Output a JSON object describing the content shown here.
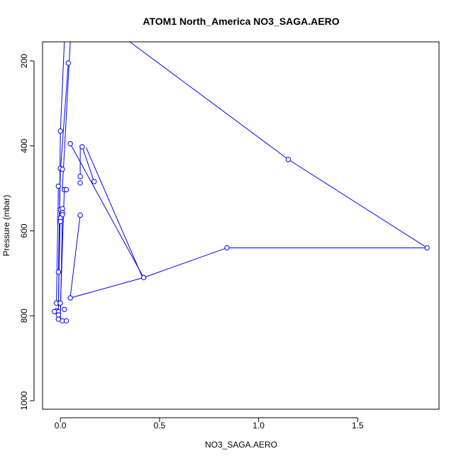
{
  "chart_data": {
    "type": "line",
    "title": "ATOM1 North_America NO3_SAGA.AERO",
    "xlabel": "NO3_SAGA.AERO",
    "ylabel": "Pressure (mbar)",
    "xlim": [
      -0.09,
      1.91
    ],
    "ylim": [
      1020,
      155
    ],
    "y_reversed": true,
    "grid": false,
    "x_ticks": [
      {
        "value": 0,
        "label": "0.0"
      },
      {
        "value": 0.5,
        "label": "0.5"
      },
      {
        "value": 1.0,
        "label": "1.0"
      },
      {
        "value": 1.5,
        "label": "1.5"
      }
    ],
    "y_ticks": [
      {
        "value": 200,
        "label": "200"
      },
      {
        "value": 400,
        "label": "400"
      },
      {
        "value": 600,
        "label": "600"
      },
      {
        "value": 800,
        "label": "800"
      },
      {
        "value": 1000,
        "label": "1000"
      }
    ],
    "series": [
      {
        "color": "#0000ff",
        "marker": "open-circle",
        "line_segments": [
          [
            [
              0.35,
              155
            ],
            [
              1.15,
              432
            ],
            [
              1.85,
              640
            ]
          ],
          [
            [
              1.85,
              640
            ],
            [
              0.84,
              640
            ],
            [
              0.42,
              710
            ],
            [
              0.05,
              758
            ]
          ],
          [
            [
              0.05,
              395
            ],
            [
              0.42,
              710
            ]
          ],
          [
            [
              0.11,
              402
            ],
            [
              0.17,
              484
            ]
          ],
          [
            [
              0.1,
              402
            ],
            [
              0.1,
              472
            ]
          ],
          [
            [
              0.13,
              404
            ],
            [
              0.41,
              705
            ]
          ],
          [
            [
              0.05,
              755
            ],
            [
              0.1,
              563
            ]
          ],
          [
            [
              0.04,
              205
            ],
            [
              0.0,
              460
            ]
          ],
          [
            [
              0.02,
              155
            ],
            [
              0.0,
              365
            ]
          ],
          [
            [
              0.05,
              155
            ],
            [
              0.01,
              500
            ]
          ],
          [
            [
              0.0,
              450
            ],
            [
              -0.01,
              700
            ]
          ],
          [
            [
              0.0,
              545
            ],
            [
              -0.01,
              770
            ]
          ],
          [
            [
              0.02,
              500
            ],
            [
              0.0,
              780
            ]
          ],
          [
            [
              0.0,
              370
            ],
            [
              -0.01,
              790
            ]
          ],
          [
            [
              0.01,
              560
            ],
            [
              0.0,
              810
            ]
          ],
          [
            [
              -0.01,
              495
            ],
            [
              -0.02,
              770
            ]
          ]
        ],
        "points": [
          [
            0.04,
            205
          ],
          [
            1.15,
            432
          ],
          [
            1.85,
            640
          ],
          [
            0.84,
            640
          ],
          [
            0.42,
            710
          ],
          [
            0.05,
            758
          ],
          [
            0.05,
            395
          ],
          [
            0.11,
            402
          ],
          [
            0.17,
            484
          ],
          [
            0.1,
            472
          ],
          [
            0.1,
            487
          ],
          [
            0.1,
            563
          ],
          [
            0.0,
            365
          ],
          [
            0.0,
            453
          ],
          [
            0.01,
            455
          ],
          [
            -0.01,
            495
          ],
          [
            0.02,
            503
          ],
          [
            0.03,
            503
          ],
          [
            0.0,
            550
          ],
          [
            0.01,
            548
          ],
          [
            0.01,
            557
          ],
          [
            0.01,
            562
          ],
          [
            0.0,
            570
          ],
          [
            0.0,
            578
          ],
          [
            -0.01,
            697
          ],
          [
            -0.01,
            770
          ],
          [
            -0.02,
            770
          ],
          [
            0.0,
            770
          ],
          [
            -0.02,
            788
          ],
          [
            -0.01,
            790
          ],
          [
            -0.03,
            790
          ],
          [
            -0.01,
            798
          ],
          [
            0.02,
            785
          ],
          [
            -0.01,
            808
          ],
          [
            0.01,
            812
          ],
          [
            0.03,
            812
          ]
        ]
      }
    ]
  }
}
